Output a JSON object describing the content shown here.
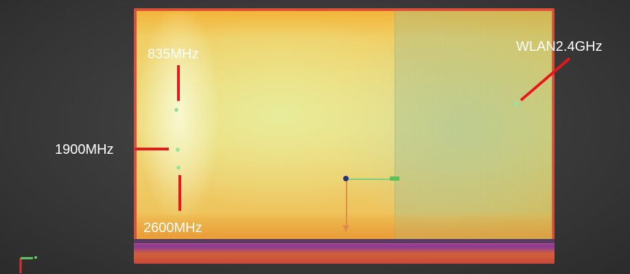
{
  "view": {
    "description_hidden": "",
    "labels": {
      "low_band": "835MHz",
      "mid_band": "1900MHz",
      "high_band": "2600MHz",
      "wlan": "WLAN2.4GHz"
    },
    "colors": {
      "background": "#3a3a3a",
      "plate_edge": "#d94f3a",
      "hot": "#f8f8cf",
      "warm": "#f0d978",
      "leader_line": "#e8171c",
      "marker": "#9be39b"
    },
    "icons": [
      "axis-triad-icon",
      "origin-marker-icon"
    ]
  }
}
